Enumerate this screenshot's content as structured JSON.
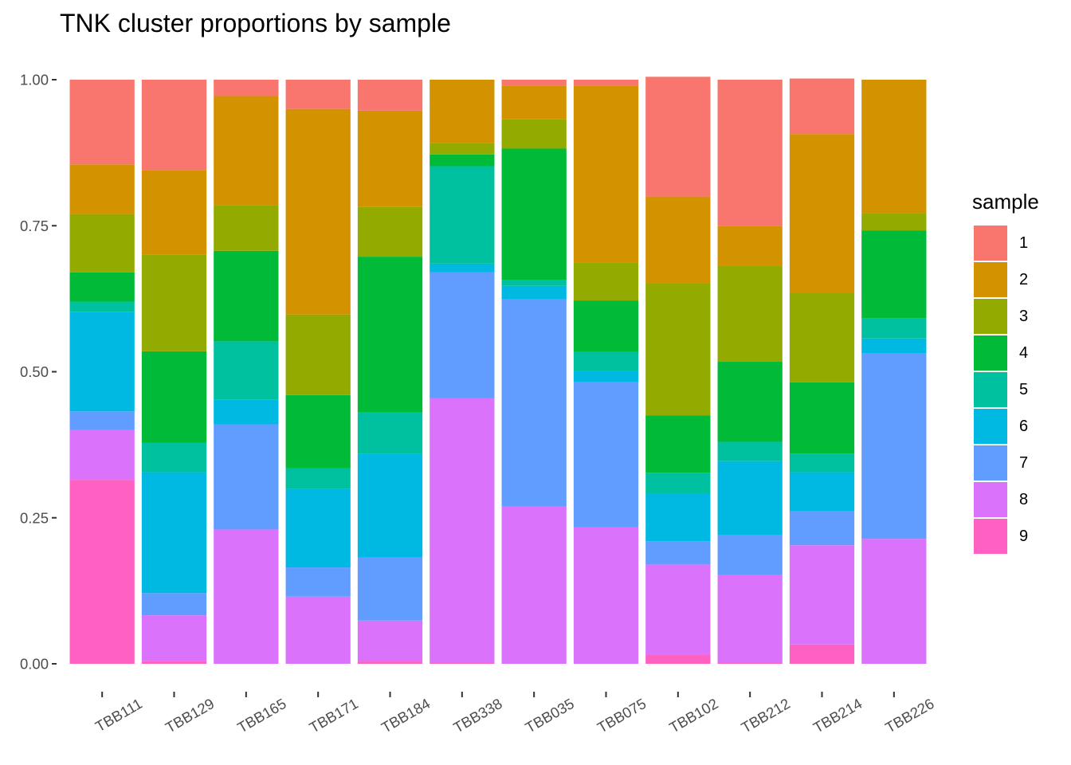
{
  "chart_data": {
    "type": "bar",
    "stacked": true,
    "title": "TNK cluster proportions by sample",
    "xlabel": "",
    "ylabel": "",
    "ylim": [
      0,
      1
    ],
    "y_ticks": [
      "0.00",
      "0.25",
      "0.50",
      "0.75",
      "1.00"
    ],
    "grid": false,
    "legend_title": "sample",
    "legend_position": "right",
    "categories": [
      "TBB111",
      "TBB129",
      "TBB165",
      "TBB171",
      "TBB184",
      "TBB338",
      "TBB035",
      "TBB075",
      "TBB102",
      "TBB212",
      "TBB214",
      "TBB226"
    ],
    "series": [
      {
        "name": "1",
        "color": "#F8766D",
        "values": [
          0.145,
          0.155,
          0.028,
          0.05,
          0.053,
          0.0,
          0.01,
          0.01,
          0.205,
          0.25,
          0.095,
          0.0
        ]
      },
      {
        "name": "2",
        "color": "#D39200",
        "values": [
          0.085,
          0.145,
          0.187,
          0.352,
          0.165,
          0.108,
          0.058,
          0.303,
          0.148,
          0.068,
          0.272,
          0.228
        ]
      },
      {
        "name": "3",
        "color": "#93AA00",
        "values": [
          0.1,
          0.165,
          0.078,
          0.138,
          0.085,
          0.02,
          0.05,
          0.065,
          0.227,
          0.165,
          0.153,
          0.03
        ]
      },
      {
        "name": "4",
        "color": "#00BA38",
        "values": [
          0.05,
          0.157,
          0.155,
          0.125,
          0.267,
          0.02,
          0.225,
          0.088,
          0.098,
          0.137,
          0.122,
          0.15
        ]
      },
      {
        "name": "5",
        "color": "#00C19F",
        "values": [
          0.018,
          0.05,
          0.1,
          0.035,
          0.07,
          0.167,
          0.01,
          0.032,
          0.035,
          0.033,
          0.032,
          0.035
        ]
      },
      {
        "name": "6",
        "color": "#00B9E3",
        "values": [
          0.17,
          0.207,
          0.042,
          0.135,
          0.178,
          0.015,
          0.023,
          0.02,
          0.082,
          0.127,
          0.067,
          0.025
        ]
      },
      {
        "name": "7",
        "color": "#619CFF",
        "values": [
          0.032,
          0.038,
          0.18,
          0.05,
          0.108,
          0.215,
          0.355,
          0.248,
          0.04,
          0.068,
          0.058,
          0.318
        ]
      },
      {
        "name": "8",
        "color": "#DB72FB",
        "values": [
          0.085,
          0.078,
          0.23,
          0.115,
          0.07,
          0.453,
          0.269,
          0.234,
          0.155,
          0.15,
          0.17,
          0.214
        ]
      },
      {
        "name": "9",
        "color": "#FF61C3",
        "values": [
          0.315,
          0.005,
          0.0,
          0.0,
          0.004,
          0.002,
          0.0,
          0.0,
          0.015,
          0.002,
          0.033,
          0.0
        ]
      }
    ]
  }
}
